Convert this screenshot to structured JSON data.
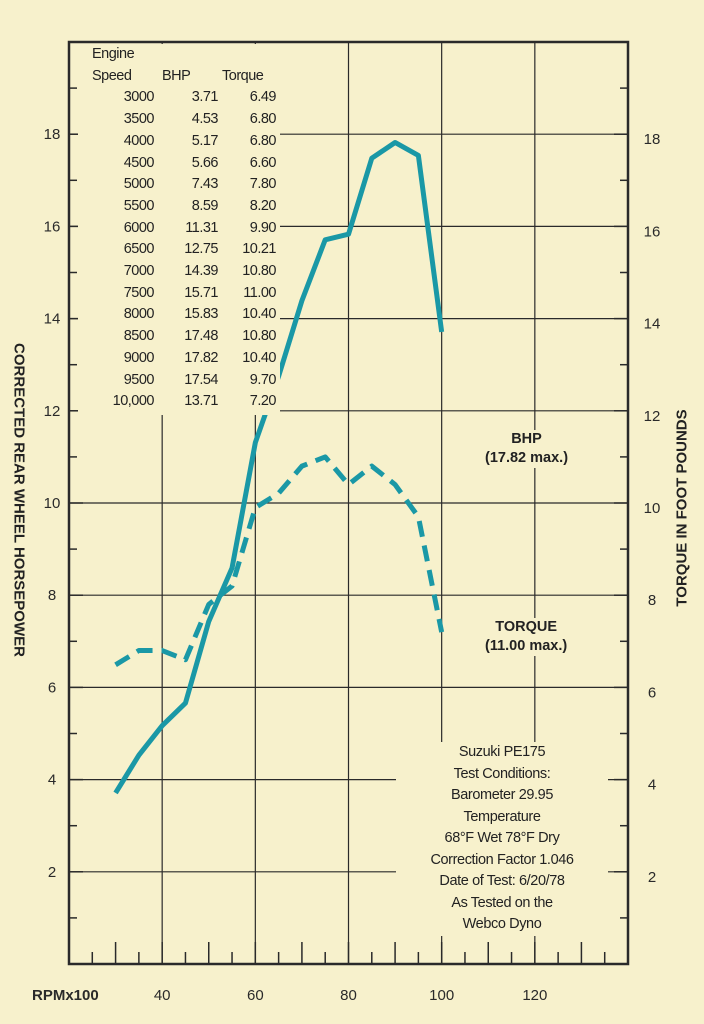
{
  "chart_data": {
    "type": "line",
    "xlabel": "RPMx100",
    "ylabel": "CORRECTED REAR WHEEL HORSEPOWER",
    "y2label": "TORQUE IN FOOT POUNDS",
    "xlim": [
      20,
      140
    ],
    "ylim": [
      0,
      20
    ],
    "x_ticks": [
      40,
      60,
      80,
      100,
      120
    ],
    "y_ticks": [
      2,
      4,
      6,
      8,
      10,
      12,
      14,
      16,
      18
    ],
    "grid": true,
    "x": [
      30,
      35,
      40,
      45,
      50,
      55,
      60,
      65,
      70,
      75,
      80,
      85,
      90,
      95,
      100
    ],
    "series": [
      {
        "name": "BHP",
        "style": "solid",
        "color": "#1a98a6",
        "values": [
          3.71,
          4.53,
          5.17,
          5.66,
          7.43,
          8.59,
          11.31,
          12.75,
          14.39,
          15.71,
          15.83,
          17.48,
          17.82,
          17.54,
          13.71
        ]
      },
      {
        "name": "TORQUE",
        "style": "dashed",
        "color": "#1a98a6",
        "values": [
          6.49,
          6.8,
          6.8,
          6.6,
          7.8,
          8.2,
          9.9,
          10.21,
          10.8,
          11.0,
          10.4,
          10.8,
          10.4,
          9.7,
          7.2
        ]
      }
    ],
    "annotations": {
      "bhp_label": "BHP",
      "bhp_max": "(17.82 max.)",
      "torque_label": "TORQUE",
      "torque_max": "(11.00 max.)"
    }
  },
  "table": {
    "headers": {
      "engine": "Engine",
      "speed": "Speed",
      "bhp": "BHP",
      "torque": "Torque"
    },
    "rows": [
      [
        "3000",
        "3.71",
        "6.49"
      ],
      [
        "3500",
        "4.53",
        "6.80"
      ],
      [
        "4000",
        "5.17",
        "6.80"
      ],
      [
        "4500",
        "5.66",
        "6.60"
      ],
      [
        "5000",
        "7.43",
        "7.80"
      ],
      [
        "5500",
        "8.59",
        "8.20"
      ],
      [
        "6000",
        "11.31",
        "9.90"
      ],
      [
        "6500",
        "12.75",
        "10.21"
      ],
      [
        "7000",
        "14.39",
        "10.80"
      ],
      [
        "7500",
        "15.71",
        "11.00"
      ],
      [
        "8000",
        "15.83",
        "10.40"
      ],
      [
        "8500",
        "17.48",
        "10.80"
      ],
      [
        "9000",
        "17.82",
        "10.40"
      ],
      [
        "9500",
        "17.54",
        "9.70"
      ],
      [
        "10,000",
        "13.71",
        "7.20"
      ]
    ]
  },
  "test_notes": [
    "Suzuki PE175",
    "Test Conditions:",
    "Barometer 29.95",
    "Temperature",
    "68°F Wet 78°F Dry",
    "Correction Factor 1.046",
    "Date of Test: 6/20/78",
    "As Tested on the",
    "Webco Dyno"
  ]
}
